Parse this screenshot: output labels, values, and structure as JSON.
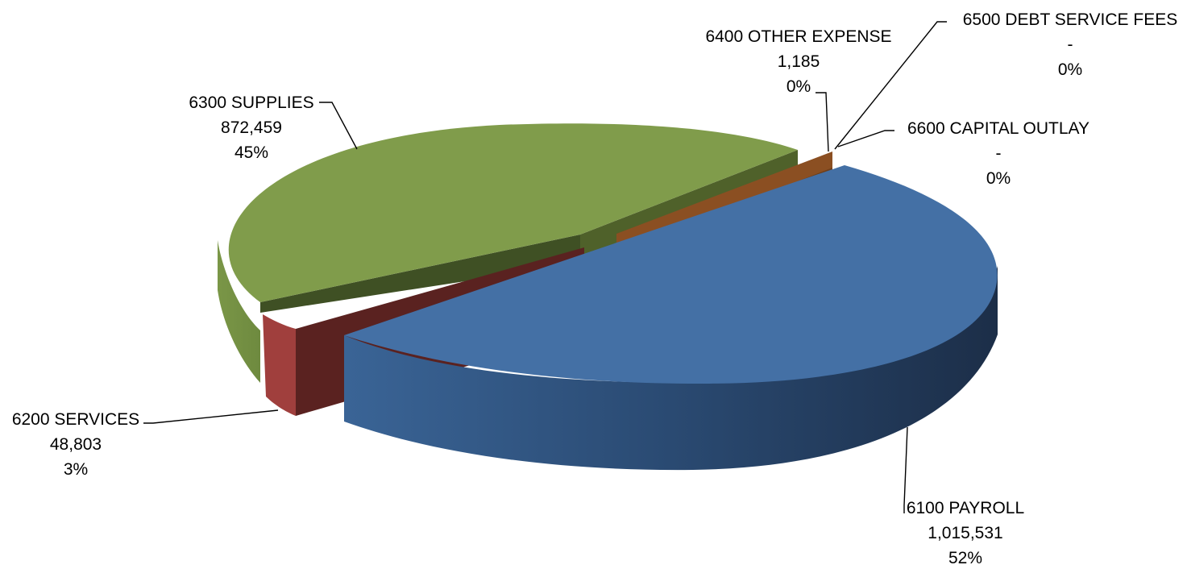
{
  "chart_data": {
    "type": "pie",
    "style": "3d-exploded",
    "slices": [
      {
        "name": "6100 PAYROLL",
        "value": 1015531,
        "value_label": "1,015,531",
        "percent_label": "52%",
        "color": "#4470A5"
      },
      {
        "name": "6200 SERVICES",
        "value": 48803,
        "value_label": "48,803",
        "percent_label": "3%",
        "color": "#A03F3D"
      },
      {
        "name": "6300 SUPPLIES",
        "value": 872459,
        "value_label": "872,459",
        "percent_label": "45%",
        "color": "#809C4B"
      },
      {
        "name": "6400 OTHER EXPENSE",
        "value": 1185,
        "value_label": "1,185",
        "percent_label": "0%",
        "color": "#8B4F22"
      },
      {
        "name": "6500 DEBT SERVICE FEES",
        "value": 0,
        "value_label": "-",
        "percent_label": "0%",
        "color": "#6B8A3F"
      },
      {
        "name": "6600 CAPITAL OUTLAY",
        "value": 0,
        "value_label": "-",
        "percent_label": "0%",
        "color": "#4470A5"
      }
    ]
  }
}
